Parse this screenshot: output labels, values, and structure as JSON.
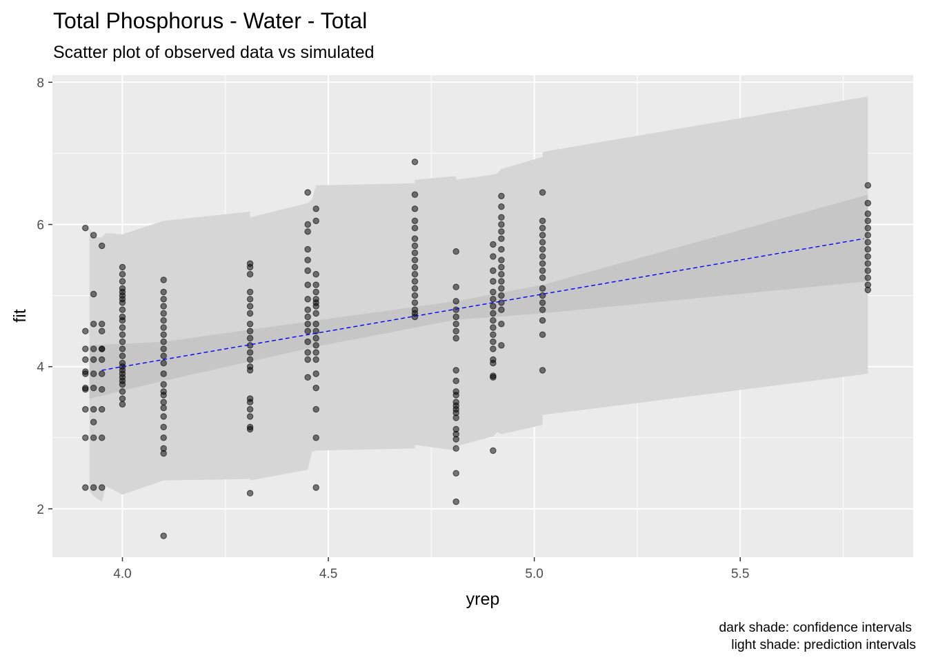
{
  "chart_data": {
    "type": "scatter",
    "title": "Total Phosphorus - Water - Total",
    "subtitle": "Scatter plot of observed data vs simulated",
    "xlabel": "yrep",
    "ylabel": "fit",
    "xlim": [
      3.83,
      5.92
    ],
    "ylim": [
      1.32,
      8.1
    ],
    "x_ticks": [
      4.0,
      4.5,
      5.0,
      5.5
    ],
    "x_tick_labels": [
      "4.0",
      "4.5",
      "5.0",
      "5.5"
    ],
    "y_ticks": [
      2,
      4,
      6,
      8
    ],
    "y_tick_labels": [
      "2",
      "4",
      "6",
      "8"
    ],
    "grid": true,
    "caption": [
      "dark shade: confidence intervals",
      "light shade: prediction intervals"
    ],
    "colors": {
      "panel": "#ebebeb",
      "grid": "#ffffff",
      "prediction_band": "#d6d6d6",
      "confidence_band": "#c6c6c6",
      "fit_line": "#0000ff",
      "point": "#000000"
    },
    "fit_line": {
      "x": [
        3.95,
        5.8
      ],
      "y": [
        3.95,
        5.8
      ],
      "style": "dashed"
    },
    "prediction_band": [
      {
        "x": 3.92,
        "lo": 2.25,
        "hi": 5.95
      },
      {
        "x": 3.93,
        "lo": 2.18,
        "hi": 5.82
      },
      {
        "x": 3.95,
        "lo": 2.1,
        "hi": 5.82
      },
      {
        "x": 3.96,
        "lo": 2.32,
        "hi": 5.88
      },
      {
        "x": 4.0,
        "lo": 2.2,
        "hi": 5.86
      },
      {
        "x": 4.1,
        "lo": 2.4,
        "hi": 6.05
      },
      {
        "x": 4.31,
        "lo": 2.42,
        "hi": 6.18
      },
      {
        "x": 4.31,
        "lo": 2.4,
        "hi": 6.1
      },
      {
        "x": 4.45,
        "lo": 2.55,
        "hi": 6.3
      },
      {
        "x": 4.46,
        "lo": 2.8,
        "hi": 6.35
      },
      {
        "x": 4.47,
        "lo": 2.82,
        "hi": 6.55
      },
      {
        "x": 4.71,
        "lo": 2.85,
        "hi": 6.58
      },
      {
        "x": 4.71,
        "lo": 2.9,
        "hi": 6.63
      },
      {
        "x": 4.81,
        "lo": 2.82,
        "hi": 6.68
      },
      {
        "x": 4.81,
        "lo": 2.88,
        "hi": 6.63
      },
      {
        "x": 4.9,
        "lo": 3.02,
        "hi": 6.7
      },
      {
        "x": 4.91,
        "lo": 3.08,
        "hi": 6.72
      },
      {
        "x": 4.92,
        "lo": 3.05,
        "hi": 6.78
      },
      {
        "x": 5.02,
        "lo": 3.18,
        "hi": 6.95
      },
      {
        "x": 5.02,
        "lo": 3.32,
        "hi": 7.02
      },
      {
        "x": 5.81,
        "lo": 3.9,
        "hi": 7.8
      }
    ],
    "confidence_band": [
      {
        "x": 3.92,
        "lo": 3.55,
        "hi": 4.3
      },
      {
        "x": 4.1,
        "lo": 3.8,
        "hi": 4.35
      },
      {
        "x": 4.47,
        "lo": 4.28,
        "hi": 4.65
      },
      {
        "x": 4.81,
        "lo": 4.66,
        "hi": 4.92
      },
      {
        "x": 5.02,
        "lo": 4.75,
        "hi": 5.15
      },
      {
        "x": 5.81,
        "lo": 5.2,
        "hi": 6.42
      }
    ],
    "points": [
      {
        "x": 3.91,
        "y": [
          5.95,
          4.5,
          4.25,
          4.1,
          3.93,
          3.9,
          3.7,
          3.68,
          3.4,
          3.0,
          2.3
        ]
      },
      {
        "x": 3.93,
        "y": [
          5.85,
          5.02,
          4.6,
          4.25,
          4.1,
          3.9,
          3.7,
          3.4,
          3.22,
          3.0,
          2.3
        ]
      },
      {
        "x": 3.95,
        "y": [
          5.7,
          4.6,
          4.5,
          4.25,
          4.25,
          4.1,
          3.9,
          3.68,
          3.4,
          3.0,
          2.3
        ]
      },
      {
        "x": 4.0,
        "y": [
          5.4,
          5.3,
          5.2,
          5.1,
          5.05,
          5.0,
          4.95,
          4.9,
          4.8,
          4.7,
          4.65,
          4.55,
          4.45,
          4.35,
          4.25,
          4.15,
          4.05,
          4.0,
          3.95,
          3.9,
          3.85,
          3.8,
          3.75,
          3.65,
          3.55,
          3.47
        ]
      },
      {
        "x": 4.1,
        "y": [
          5.22,
          5.05,
          4.95,
          4.85,
          4.75,
          4.65,
          4.55,
          4.45,
          4.35,
          4.25,
          4.15,
          4.05,
          3.9,
          3.75,
          3.65,
          3.6,
          3.5,
          3.42,
          3.3,
          3.15,
          3.0,
          2.85,
          2.78,
          1.62
        ]
      },
      {
        "x": 4.31,
        "y": [
          5.45,
          5.4,
          5.3,
          5.05,
          4.95,
          4.85,
          4.75,
          4.6,
          4.5,
          4.4,
          4.3,
          4.2,
          4.1,
          4.0,
          3.95,
          3.55,
          3.5,
          3.4,
          3.3,
          3.15,
          3.12,
          2.22
        ]
      },
      {
        "x": 4.45,
        "y": [
          6.45,
          6.0,
          5.9,
          5.65,
          5.5,
          5.35,
          5.15,
          4.95,
          4.8,
          4.7,
          4.6,
          4.5,
          4.35,
          4.2,
          4.1,
          3.85
        ]
      },
      {
        "x": 4.47,
        "y": [
          6.22,
          6.05,
          5.3,
          5.15,
          5.05,
          4.95,
          4.9,
          4.85,
          4.75,
          4.6,
          4.5,
          4.4,
          4.3,
          4.2,
          4.1,
          3.9,
          3.7,
          3.4,
          3.0,
          2.3
        ]
      },
      {
        "x": 4.71,
        "y": [
          6.88,
          6.42,
          6.22,
          6.05,
          5.95,
          5.8,
          5.7,
          5.6,
          5.5,
          5.4,
          5.3,
          5.2,
          5.1,
          5.0,
          4.9,
          4.8,
          4.75,
          4.7
        ]
      },
      {
        "x": 4.81,
        "y": [
          5.62,
          5.12,
          4.92,
          4.8,
          4.7,
          4.6,
          4.5,
          4.4,
          3.95,
          3.8,
          3.65,
          3.6,
          3.5,
          3.45,
          3.4,
          3.35,
          3.28,
          3.12,
          3.05,
          2.98,
          2.85,
          2.5,
          2.1
        ]
      },
      {
        "x": 4.9,
        "y": [
          5.72,
          5.55,
          5.35,
          5.2,
          5.05,
          4.95,
          4.85,
          4.75,
          4.65,
          4.55,
          4.45,
          4.35,
          4.25,
          4.1,
          4.05,
          3.87,
          3.85,
          2.82
        ]
      },
      {
        "x": 4.92,
        "y": [
          6.4,
          6.25,
          6.1,
          6.0,
          5.9,
          5.8,
          5.65,
          5.5,
          5.4,
          5.3,
          5.2,
          5.1,
          5.0,
          4.9,
          4.8,
          4.6,
          4.3
        ]
      },
      {
        "x": 5.02,
        "y": [
          6.45,
          6.05,
          5.95,
          5.85,
          5.75,
          5.65,
          5.55,
          5.45,
          5.35,
          5.25,
          5.1,
          5.0,
          4.9,
          4.8,
          4.65,
          4.45,
          3.95
        ]
      },
      {
        "x": 5.81,
        "y": [
          6.55,
          6.3,
          6.15,
          6.05,
          5.95,
          5.85,
          5.75,
          5.65,
          5.55,
          5.45,
          5.35,
          5.25,
          5.15,
          5.08
        ]
      }
    ]
  }
}
